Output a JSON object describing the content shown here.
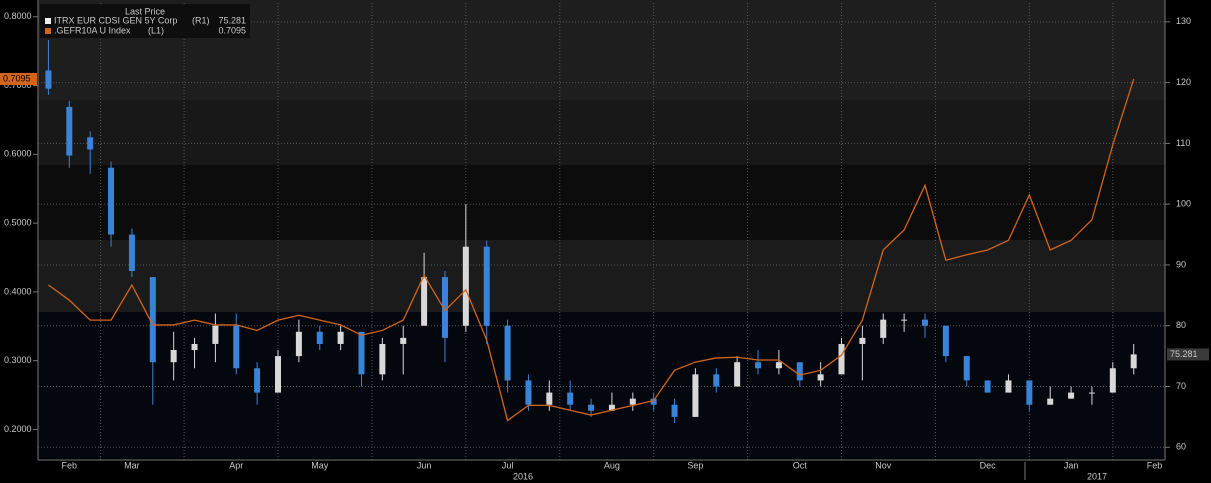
{
  "chart_data": {
    "type": "candlestick",
    "legend_title": "Last Price",
    "categories": [
      null,
      "Feb",
      null,
      null,
      "Mar",
      null,
      null,
      null,
      null,
      "Apr",
      null,
      null,
      null,
      "May",
      null,
      null,
      null,
      null,
      "Jun",
      null,
      null,
      null,
      "Jul",
      null,
      null,
      null,
      null,
      "Aug",
      null,
      null,
      null,
      "Sep",
      null,
      null,
      null,
      null,
      "Oct",
      null,
      null,
      null,
      "Nov",
      null,
      null,
      null,
      null,
      "Dec",
      null,
      null,
      null,
      "Jan",
      null,
      null,
      null,
      "Feb"
    ],
    "year_labels": [
      "2016",
      "2017"
    ],
    "series": [
      {
        "name": "ITRX EUR CDSI GEN 5Y Corp",
        "type": "candlestick",
        "axis": "y2",
        "axis_label": "(R1)",
        "up_color": "#d8d8d8",
        "down_color": "#3a84d8",
        "open": [
          122,
          116,
          111,
          106,
          95,
          88,
          74,
          76,
          77,
          80,
          73,
          69,
          75,
          79,
          77,
          79,
          72,
          77,
          80,
          88,
          80,
          93,
          80,
          71,
          67,
          69,
          67,
          66,
          67,
          68,
          67,
          65,
          72,
          70,
          74,
          73,
          74,
          71,
          72,
          77,
          78,
          81,
          81,
          80,
          75,
          71,
          69,
          71,
          67,
          68,
          69,
          69,
          73,
          null
        ],
        "high": [
          127,
          117,
          112,
          107,
          96,
          88,
          79,
          78,
          82,
          82,
          74,
          76,
          81,
          80,
          80,
          79,
          78,
          80,
          92,
          89,
          100,
          94,
          81,
          72,
          71,
          71,
          68,
          69,
          69,
          69,
          68,
          73,
          73,
          75,
          76,
          76,
          74,
          74,
          78,
          80,
          82,
          82,
          82,
          80,
          75,
          71,
          72,
          71,
          70,
          70,
          70,
          74,
          77,
          null
        ],
        "low": [
          118,
          106,
          105,
          93,
          88,
          67,
          71,
          73,
          74,
          72,
          67,
          69,
          74,
          76,
          76,
          70,
          71,
          72,
          80,
          74,
          79,
          77,
          69,
          66,
          66,
          66,
          65,
          66,
          66,
          66,
          64,
          65,
          69,
          70,
          72,
          72,
          70,
          70,
          72,
          71,
          77,
          79,
          78,
          74,
          70,
          69,
          69,
          66,
          67,
          68,
          67,
          69,
          72,
          null
        ],
        "close": [
          119,
          108,
          109,
          95,
          89,
          74,
          76,
          77,
          80,
          73,
          69,
          75,
          79,
          77,
          79,
          72,
          77,
          78,
          88,
          78,
          93,
          80,
          71,
          67,
          69,
          67,
          66,
          67,
          68,
          67,
          65,
          72,
          70,
          74,
          73,
          74,
          71,
          72,
          77,
          78,
          81,
          81,
          80,
          75,
          71,
          69,
          71,
          67,
          68,
          69,
          69,
          73,
          75.281,
          null
        ]
      },
      {
        "name": ".GEFR10A U Index",
        "type": "line",
        "axis": "y",
        "axis_label": "(L1)",
        "color": "#d2651c",
        "values": [
          0.41,
          0.388,
          0.359,
          0.359,
          0.41,
          0.352,
          0.352,
          0.359,
          0.352,
          0.352,
          0.344,
          0.359,
          0.366,
          0.359,
          0.352,
          0.337,
          0.344,
          0.359,
          0.424,
          0.373,
          0.403,
          0.33,
          0.213,
          0.235,
          0.235,
          0.228,
          0.221,
          0.228,
          0.235,
          0.242,
          0.286,
          0.298,
          0.304,
          0.305,
          0.301,
          0.301,
          0.279,
          0.286,
          0.308,
          0.359,
          0.461,
          0.49,
          0.555,
          0.446,
          0.454,
          0.461,
          0.475,
          0.541,
          0.461,
          0.475,
          0.505,
          0.614,
          0.7095,
          null
        ]
      }
    ],
    "ylim": [
      0.16,
      0.82
    ],
    "yticks": [
      {
        "value": 0.2,
        "label": "0.2000"
      },
      {
        "value": 0.3,
        "label": "0.3000"
      },
      {
        "value": 0.4,
        "label": "0.4000"
      },
      {
        "value": 0.5,
        "label": "0.5000"
      },
      {
        "value": 0.6,
        "label": "0.6000"
      },
      {
        "value": 0.7,
        "label": "0.7000"
      },
      {
        "value": 0.8,
        "label": "0.8000"
      }
    ],
    "y2lim": [
      58.4,
      133.1
    ],
    "y2ticks": [
      60,
      70,
      80,
      90,
      100,
      110,
      120,
      130
    ],
    "grid": true
  }
}
